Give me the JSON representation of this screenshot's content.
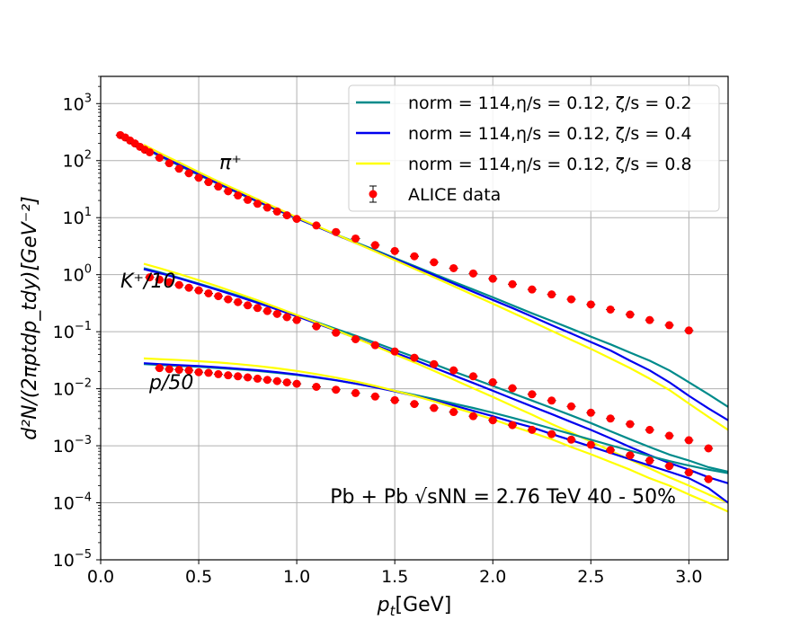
{
  "chart_data": {
    "type": "line",
    "xlabel": "p_t[GeV]",
    "ylabel": "d²N/(2πptdp_tdy)[GeV⁻²]",
    "xlim": [
      0.0,
      3.2
    ],
    "ylim": [
      1e-05,
      3000
    ],
    "yscale": "log",
    "grid": true,
    "legend_position": "top-right",
    "x_ticks": [
      0.0,
      0.5,
      1.0,
      1.5,
      2.0,
      2.5,
      3.0
    ],
    "x_tick_labels": [
      "0.0",
      "0.5",
      "1.0",
      "1.5",
      "2.0",
      "2.5",
      "3.0"
    ],
    "y_tick_exponents": [
      -5,
      -4,
      -3,
      -2,
      -1,
      0,
      1,
      2,
      3
    ],
    "legend": [
      {
        "label": "norm = 114,η/s = 0.12, ζ/s = 0.2",
        "color": "#008b8b",
        "kind": "line"
      },
      {
        "label": "norm = 114,η/s = 0.12, ζ/s = 0.4",
        "color": "#0000ee",
        "kind": "line"
      },
      {
        "label": "norm = 114,η/s = 0.12, ζ/s = 0.8",
        "color": "#ffff00",
        "kind": "line"
      },
      {
        "label": "ALICE data",
        "color": "#ff0000",
        "kind": "marker"
      }
    ],
    "annotations": {
      "pion": "π⁺",
      "kaon": "K⁺/10",
      "proton": "p/50",
      "system": "Pb + Pb √sNN = 2.76 TeV 40 - 50%"
    },
    "particles": [
      {
        "name": "π⁺",
        "data": {
          "x": [
            0.1,
            0.125,
            0.15,
            0.175,
            0.2,
            0.225,
            0.25,
            0.3,
            0.35,
            0.4,
            0.45,
            0.5,
            0.55,
            0.6,
            0.65,
            0.7,
            0.75,
            0.8,
            0.85,
            0.9,
            0.95,
            1.0,
            1.1,
            1.2,
            1.3,
            1.4,
            1.5,
            1.6,
            1.7,
            1.8,
            1.9,
            2.0,
            2.1,
            2.2,
            2.3,
            2.4,
            2.5,
            2.6,
            2.7,
            2.8,
            2.9,
            3.0
          ],
          "y": [
            280,
            255,
            225,
            200,
            175,
            155,
            140,
            112,
            90,
            72,
            60,
            50,
            42,
            35,
            29,
            24.5,
            20.5,
            17.5,
            15,
            12.8,
            11,
            9.5,
            7.3,
            5.6,
            4.3,
            3.3,
            2.6,
            2.1,
            1.65,
            1.3,
            1.05,
            0.85,
            0.68,
            0.55,
            0.45,
            0.37,
            0.3,
            0.245,
            0.2,
            0.16,
            0.13,
            0.105
          ]
        },
        "models": [
          {
            "name": "ζ/s = 0.2",
            "color": "#008b8b",
            "x": [
              0.22,
              0.3,
              0.4,
              0.5,
              0.6,
              0.7,
              0.8,
              0.9,
              1.0,
              1.1,
              1.2,
              1.3,
              1.4,
              1.5,
              1.6,
              1.7,
              1.8,
              1.9,
              2.0,
              2.1,
              2.2,
              2.3,
              2.4,
              2.5,
              2.6,
              2.7,
              2.8,
              2.9,
              3.0,
              3.1,
              3.2
            ],
            "y": [
              165,
              120,
              82,
              56,
              39,
              27,
              19,
              13.5,
              9.7,
              7.0,
              5.1,
              3.7,
              2.7,
              1.95,
              1.42,
              1.03,
              0.75,
              0.55,
              0.4,
              0.29,
              0.21,
              0.155,
              0.113,
              0.082,
              0.06,
              0.043,
              0.031,
              0.021,
              0.013,
              0.008,
              0.0048
            ]
          },
          {
            "name": "ζ/s = 0.4",
            "color": "#0000ee",
            "x": [
              0.22,
              0.3,
              0.4,
              0.5,
              0.6,
              0.7,
              0.8,
              0.9,
              1.0,
              1.1,
              1.2,
              1.3,
              1.4,
              1.5,
              1.6,
              1.7,
              1.8,
              1.9,
              2.0,
              2.1,
              2.2,
              2.3,
              2.4,
              2.5,
              2.6,
              2.7,
              2.8,
              2.9,
              3.0,
              3.1,
              3.2
            ],
            "y": [
              172,
              124,
              85,
              58,
              40,
              28,
              19.5,
              13.8,
              9.8,
              7.0,
              5.0,
              3.6,
              2.6,
              1.88,
              1.36,
              0.98,
              0.7,
              0.5,
              0.36,
              0.26,
              0.185,
              0.13,
              0.093,
              0.066,
              0.047,
              0.031,
              0.021,
              0.013,
              0.0075,
              0.0045,
              0.0028
            ]
          },
          {
            "name": "ζ/s = 0.8",
            "color": "#ffff00",
            "x": [
              0.22,
              0.3,
              0.4,
              0.5,
              0.6,
              0.7,
              0.8,
              0.9,
              1.0,
              1.1,
              1.2,
              1.3,
              1.4,
              1.5,
              1.6,
              1.7,
              1.8,
              1.9,
              2.0,
              2.1,
              2.2,
              2.3,
              2.4,
              2.5,
              2.6,
              2.7,
              2.8,
              2.9,
              3.0,
              3.1,
              3.2
            ],
            "y": [
              190,
              137,
              93,
              63,
              43,
              30,
              21,
              14.6,
              10.2,
              7.2,
              5.1,
              3.6,
              2.55,
              1.8,
              1.27,
              0.9,
              0.63,
              0.44,
              0.31,
              0.215,
              0.15,
              0.104,
              0.072,
              0.05,
              0.034,
              0.023,
              0.015,
              0.0095,
              0.0055,
              0.0032,
              0.0019
            ]
          }
        ]
      },
      {
        "name": "K⁺/10",
        "data": {
          "x": [
            0.25,
            0.3,
            0.35,
            0.4,
            0.45,
            0.5,
            0.55,
            0.6,
            0.65,
            0.7,
            0.75,
            0.8,
            0.85,
            0.9,
            0.95,
            1.0,
            1.1,
            1.2,
            1.3,
            1.4,
            1.5,
            1.6,
            1.7,
            1.8,
            1.9,
            2.0,
            2.1,
            2.2,
            2.3,
            2.4,
            2.5,
            2.6,
            2.7,
            2.8,
            2.9,
            3.0,
            3.1
          ],
          "y": [
            0.9,
            0.82,
            0.74,
            0.66,
            0.59,
            0.53,
            0.47,
            0.42,
            0.37,
            0.33,
            0.29,
            0.26,
            0.23,
            0.205,
            0.18,
            0.16,
            0.124,
            0.096,
            0.074,
            0.058,
            0.045,
            0.035,
            0.027,
            0.021,
            0.0165,
            0.013,
            0.0102,
            0.008,
            0.0062,
            0.0049,
            0.0038,
            0.003,
            0.0024,
            0.0019,
            0.0015,
            0.00125,
            0.0009
          ]
        },
        "models": [
          {
            "name": "ζ/s = 0.2",
            "color": "#008b8b",
            "x": [
              0.22,
              0.3,
              0.4,
              0.5,
              0.6,
              0.7,
              0.8,
              0.9,
              1.0,
              1.1,
              1.2,
              1.3,
              1.4,
              1.5,
              1.6,
              1.7,
              1.8,
              1.9,
              2.0,
              2.1,
              2.2,
              2.3,
              2.4,
              2.5,
              2.6,
              2.7,
              2.8,
              2.9,
              3.0,
              3.1,
              3.2
            ],
            "y": [
              1.3,
              1.1,
              0.88,
              0.7,
              0.55,
              0.43,
              0.33,
              0.255,
              0.195,
              0.148,
              0.112,
              0.085,
              0.064,
              0.048,
              0.036,
              0.027,
              0.02,
              0.015,
              0.0112,
              0.0083,
              0.0062,
              0.0046,
              0.0034,
              0.0025,
              0.0018,
              0.0013,
              0.00095,
              0.0007,
              0.00055,
              0.00042,
              0.00035
            ]
          },
          {
            "name": "ζ/s = 0.4",
            "color": "#0000ee",
            "x": [
              0.22,
              0.3,
              0.4,
              0.5,
              0.6,
              0.7,
              0.8,
              0.9,
              1.0,
              1.1,
              1.2,
              1.3,
              1.4,
              1.5,
              1.6,
              1.7,
              1.8,
              1.9,
              2.0,
              2.1,
              2.2,
              2.3,
              2.4,
              2.5,
              2.6,
              2.7,
              2.8,
              2.9,
              3.0,
              3.1,
              3.2
            ],
            "y": [
              1.25,
              1.07,
              0.86,
              0.68,
              0.535,
              0.415,
              0.32,
              0.245,
              0.186,
              0.14,
              0.105,
              0.078,
              0.058,
              0.043,
              0.032,
              0.0235,
              0.0172,
              0.0126,
              0.0092,
              0.0067,
              0.0049,
              0.0036,
              0.0026,
              0.0019,
              0.00135,
              0.00095,
              0.00068,
              0.0005,
              0.00038,
              0.00028,
              0.00022
            ]
          },
          {
            "name": "ζ/s = 0.8",
            "color": "#ffff00",
            "x": [
              0.22,
              0.3,
              0.4,
              0.5,
              0.6,
              0.7,
              0.8,
              0.9,
              1.0,
              1.1,
              1.2,
              1.3,
              1.4,
              1.5,
              1.6,
              1.7,
              1.8,
              1.9,
              2.0,
              2.1,
              2.2,
              2.3,
              2.4,
              2.5,
              2.6,
              2.7,
              2.8,
              2.9,
              3.0,
              3.1,
              3.2
            ],
            "y": [
              1.55,
              1.3,
              1.03,
              0.8,
              0.62,
              0.47,
              0.355,
              0.265,
              0.197,
              0.145,
              0.106,
              0.077,
              0.056,
              0.04,
              0.029,
              0.0205,
              0.0145,
              0.0102,
              0.0072,
              0.005,
              0.0035,
              0.0024,
              0.0017,
              0.00118,
              0.00082,
              0.00057,
              0.0004,
              0.00028,
              0.0002,
              0.00014,
              0.0001
            ]
          }
        ]
      },
      {
        "name": "p/50",
        "data": {
          "x": [
            0.3,
            0.35,
            0.4,
            0.45,
            0.5,
            0.55,
            0.6,
            0.65,
            0.7,
            0.75,
            0.8,
            0.85,
            0.9,
            0.95,
            1.0,
            1.1,
            1.2,
            1.3,
            1.4,
            1.5,
            1.6,
            1.7,
            1.8,
            1.9,
            2.0,
            2.1,
            2.2,
            2.3,
            2.4,
            2.5,
            2.6,
            2.7,
            2.8,
            2.9,
            3.0,
            3.1
          ],
          "y": [
            0.023,
            0.022,
            0.0215,
            0.021,
            0.0195,
            0.019,
            0.018,
            0.0172,
            0.0165,
            0.0158,
            0.015,
            0.0143,
            0.0136,
            0.0129,
            0.0122,
            0.0108,
            0.0096,
            0.0084,
            0.0073,
            0.0063,
            0.0054,
            0.0046,
            0.0039,
            0.0033,
            0.0028,
            0.0023,
            0.0019,
            0.0016,
            0.00128,
            0.00104,
            0.00084,
            0.00068,
            0.00055,
            0.00044,
            0.00034,
            0.00026
          ]
        },
        "models": [
          {
            "name": "ζ/s = 0.2",
            "color": "#008b8b",
            "x": [
              0.22,
              0.3,
              0.4,
              0.5,
              0.6,
              0.7,
              0.8,
              0.9,
              1.0,
              1.1,
              1.2,
              1.3,
              1.4,
              1.5,
              1.6,
              1.7,
              1.8,
              1.9,
              2.0,
              2.1,
              2.2,
              2.3,
              2.4,
              2.5,
              2.6,
              2.7,
              2.8,
              2.9,
              3.0,
              3.1,
              3.2
            ],
            "y": [
              0.027,
              0.0262,
              0.0252,
              0.0242,
              0.023,
              0.0218,
              0.0205,
              0.019,
              0.0174,
              0.0157,
              0.014,
              0.0123,
              0.0107,
              0.0092,
              0.0078,
              0.0066,
              0.0055,
              0.0046,
              0.0038,
              0.0031,
              0.0025,
              0.002,
              0.0016,
              0.00128,
              0.00102,
              0.00082,
              0.00066,
              0.00054,
              0.00045,
              0.00038,
              0.00033
            ]
          },
          {
            "name": "ζ/s = 0.4",
            "color": "#0000ee",
            "x": [
              0.22,
              0.3,
              0.4,
              0.5,
              0.6,
              0.7,
              0.8,
              0.9,
              1.0,
              1.1,
              1.2,
              1.3,
              1.4,
              1.5,
              1.6,
              1.7,
              1.8,
              1.9,
              2.0,
              2.1,
              2.2,
              2.3,
              2.4,
              2.5,
              2.6,
              2.7,
              2.8,
              2.9,
              3.0,
              3.1,
              3.2
            ],
            "y": [
              0.028,
              0.027,
              0.026,
              0.025,
              0.0238,
              0.0225,
              0.0211,
              0.0195,
              0.0178,
              0.016,
              0.0141,
              0.0123,
              0.0106,
              0.009,
              0.0075,
              0.0062,
              0.0051,
              0.0041,
              0.0033,
              0.0026,
              0.0021,
              0.0016,
              0.00125,
              0.00097,
              0.00075,
              0.00058,
              0.00045,
              0.00035,
              0.00027,
              0.00018,
              0.0001
            ]
          },
          {
            "name": "ζ/s = 0.8",
            "color": "#ffff00",
            "x": [
              0.22,
              0.3,
              0.4,
              0.5,
              0.6,
              0.7,
              0.8,
              0.9,
              1.0,
              1.1,
              1.2,
              1.3,
              1.4,
              1.5,
              1.6,
              1.7,
              1.8,
              1.9,
              2.0,
              2.1,
              2.2,
              2.3,
              2.4,
              2.5,
              2.6,
              2.7,
              2.8,
              2.9,
              3.0,
              3.1,
              3.2
            ],
            "y": [
              0.034,
              0.033,
              0.0318,
              0.0304,
              0.0288,
              0.027,
              0.025,
              0.0228,
              0.0205,
              0.0181,
              0.0157,
              0.0134,
              0.0112,
              0.0092,
              0.0075,
              0.006,
              0.0047,
              0.0037,
              0.0029,
              0.0022,
              0.0017,
              0.0013,
              0.00095,
              0.00071,
              0.00052,
              0.00038,
              0.00027,
              0.0002,
              0.00014,
              0.0001,
              7e-05
            ]
          }
        ]
      }
    ]
  }
}
